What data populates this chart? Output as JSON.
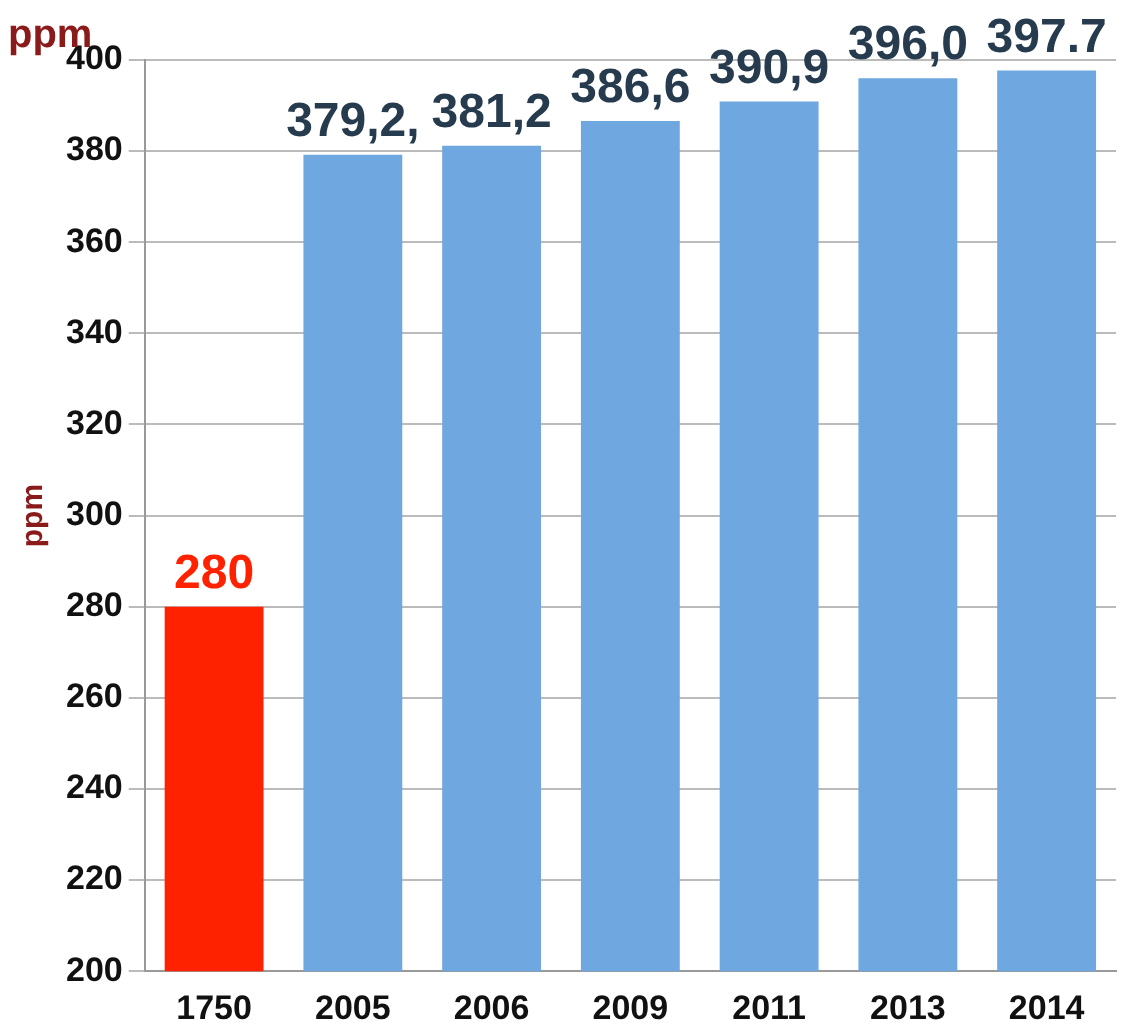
{
  "chart_data": {
    "type": "bar",
    "ylabel": "ppm",
    "annotations": [
      "ppm"
    ],
    "categories": [
      "1750",
      "2005",
      "2006",
      "2009",
      "2011",
      "2013",
      "2014"
    ],
    "values": [
      280,
      379.2,
      381.2,
      386.6,
      390.9,
      396.0,
      397.7
    ],
    "colors": [
      "#ff2200",
      "#6fa8e0",
      "#6fa8e0",
      "#6fa8e0",
      "#6fa8e0",
      "#6fa8e0",
      "#6fa8e0"
    ],
    "value_labels": [
      "280",
      "379,2,",
      "381,2",
      "386,6",
      "390,9",
      "396,0",
      "397.7"
    ],
    "ylim": [
      200,
      400
    ],
    "yticks": [
      200,
      220,
      240,
      260,
      280,
      300,
      320,
      340,
      360,
      380,
      400
    ],
    "grid": "y",
    "legend": false
  }
}
